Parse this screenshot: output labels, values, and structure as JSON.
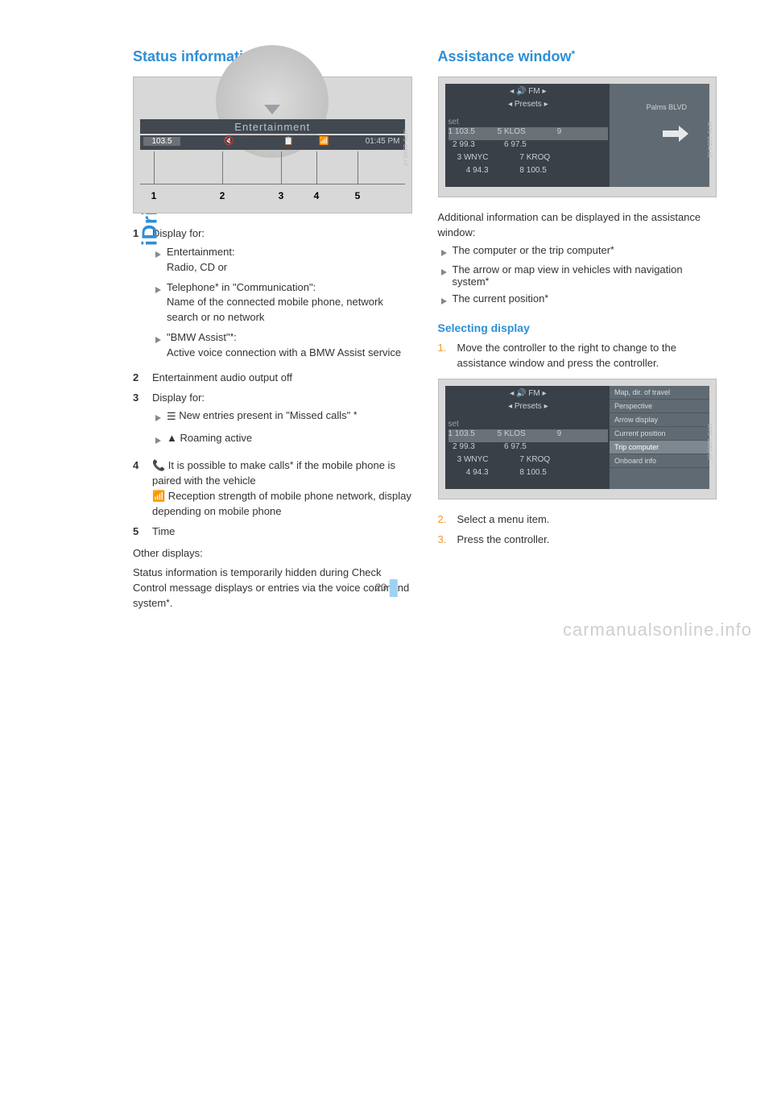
{
  "side_label": "iDrive",
  "page_number": "20",
  "watermark": "carmanualsonline.info",
  "left": {
    "heading": "Status information",
    "fig1": {
      "entertainment_label": "Entertainment",
      "row": {
        "f1": "103.5",
        "f2": "🔇",
        "f3": "📋",
        "f4": "📶",
        "f5": "01:45 PM"
      },
      "nums": [
        "1",
        "2",
        "3",
        "4",
        "5"
      ],
      "sidecode": "M79-0340.tif"
    },
    "defs": [
      {
        "num": "1",
        "label": "Display for:",
        "subs": [
          {
            "text": "Entertainment:\nRadio, CD or"
          },
          {
            "text_html": "Telephone<span class='star'>*</span> in \"Communication\":\nName of the connected mobile phone, network search or no network"
          },
          {
            "text_html": "\"BMW Assist\"<span class='star'>*</span>:\nActive voice connection with a BMW Assist service"
          }
        ]
      },
      {
        "num": "2",
        "label": "Entertainment audio output off"
      },
      {
        "num": "3",
        "label": "Display for:",
        "subs": [
          {
            "icon": "list",
            "text_html": "New entries present in \"Missed calls\" <span class='star'>*</span>"
          },
          {
            "icon": "tri-up",
            "text": "Roaming active"
          }
        ]
      },
      {
        "num": "4",
        "label_html": "<span class='icon-inline'>📞</span> It is possible to make calls<span class='star'>*</span> if the mobile phone is paired with the vehicle\n<span class='icon-inline'>📶</span> Reception strength of mobile phone network, display depending on mobile phone"
      },
      {
        "num": "5",
        "label": "Time"
      }
    ],
    "other_label": "Other displays:",
    "other_text_html": "Status information is temporarily hidden during Check Control message displays or entries via the voice command system<span class='star'>*</span>."
  },
  "right": {
    "heading_html": "Assistance window<span class='star'>*</span>",
    "fig2": {
      "top_row": "◂ 🔊 FM ▸",
      "presets": "◂ Presets ▸",
      "set": "set",
      "rows": [
        "1 103.5          5 KLOS              9",
        "  2 99.3             6 97.5",
        "    3 WNYC              7 KROQ",
        "        4 94.3              8 100.5"
      ],
      "palms": "Palms BLVD",
      "sidecode": "M79-1354.tif"
    },
    "intro": "Additional information can be displayed in the assistance window:",
    "bullets": [
      {
        "text_html": "The computer or the trip computer<span class='star'>*</span>"
      },
      {
        "text_html": "The arrow or map view in vehicles with navigation system<span class='star'>*</span>"
      },
      {
        "text_html": "The current position<span class='star'>*</span>"
      }
    ],
    "selecting_heading": "Selecting display",
    "step1": "Move the controller to the right to change to the assistance window and press the controller.",
    "fig3": {
      "top_row": "◂ 🔊 FM ▸",
      "presets": "◂ Presets ▸",
      "set": "set",
      "rows": [
        "1 103.5          5 KLOS              9",
        "  2 99.3             6 97.5",
        "    3 WNYC              7 KROQ",
        "        4 94.3              8 100.5"
      ],
      "menu": [
        "Map, dir. of travel",
        "Perspective",
        "Arrow display",
        "Current position",
        "Trip computer",
        "Onboard info"
      ],
      "menu_hl": 4,
      "sidecode": "M79-1356.tif"
    },
    "step2": "Select a menu item.",
    "step3": "Press the controller."
  }
}
